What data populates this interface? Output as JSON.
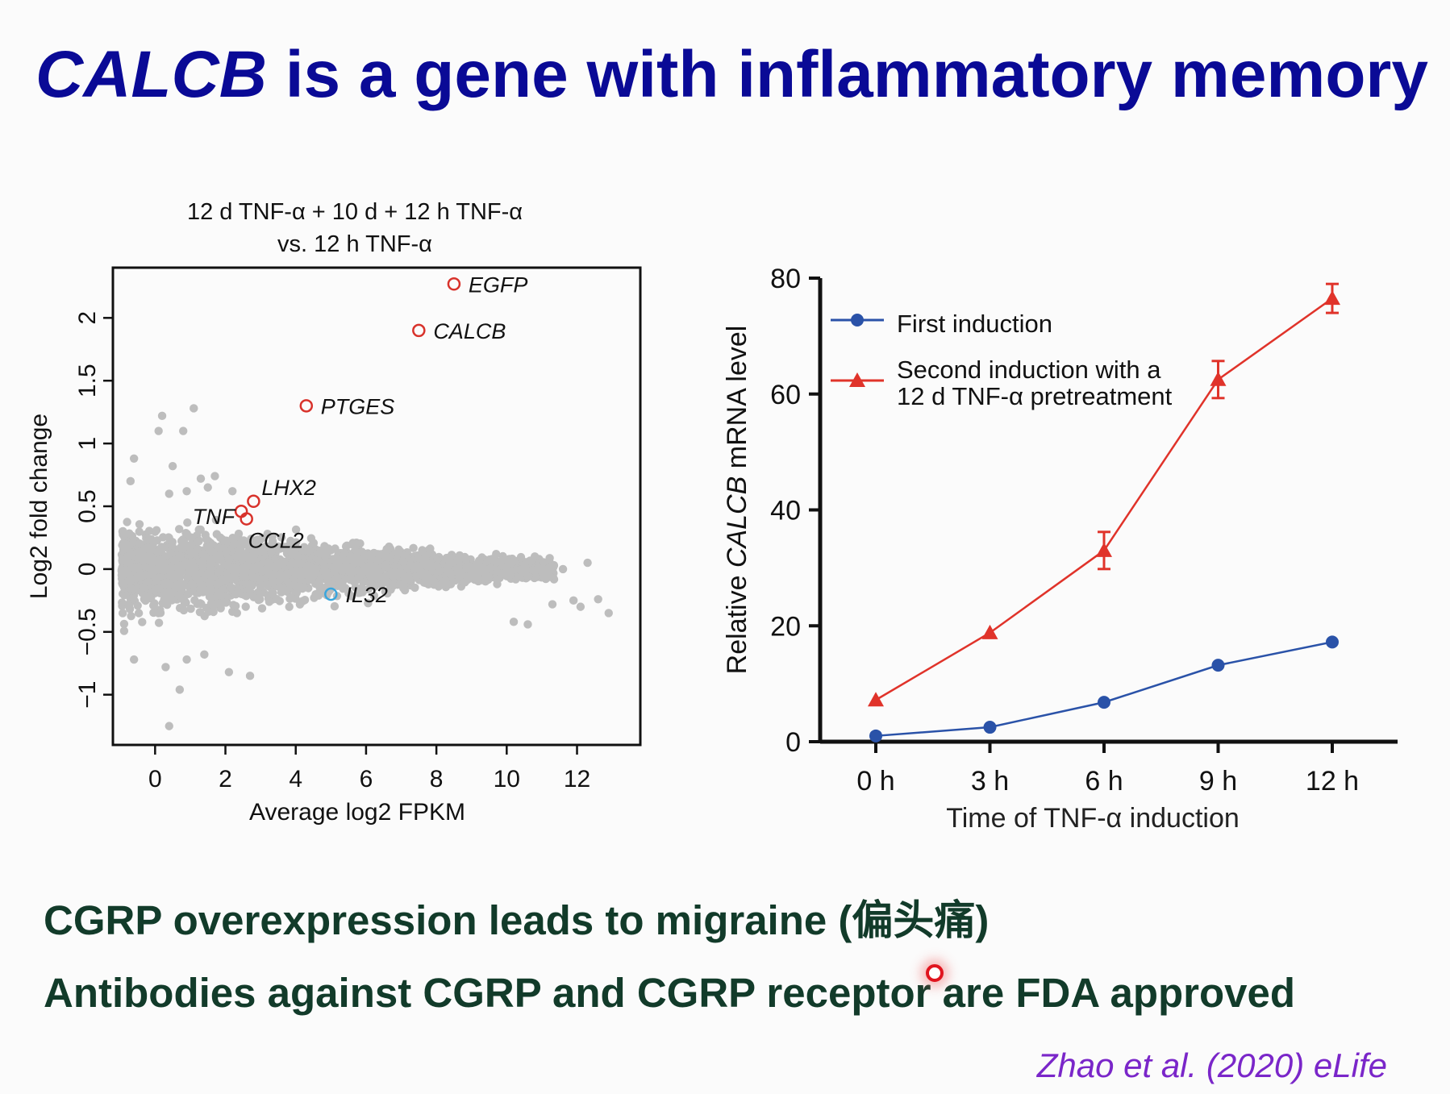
{
  "slide": {
    "title_gene": "CALCB",
    "title_rest": " is a gene with inflammatory memory",
    "bullet1": "CGRP overexpression leads to migraine (偏头痛)",
    "bullet2": "Antibodies against CGRP and CGRP receptor are FDA approved",
    "citation": "Zhao et al. (2020) eLife",
    "title_color": "#0a0a96",
    "bullet_color": "#123b2a",
    "citation_color": "#7a26c9"
  },
  "chart_data": [
    {
      "type": "scatter",
      "title_line1": "12 d TNF-α + 10 d + 12 h TNF-α",
      "title_line2": "vs. 12 h TNF-α",
      "xlabel": "Average log2 FPKM",
      "ylabel": "Log2 fold change",
      "xlim": [
        -1.2,
        13.8
      ],
      "ylim": [
        -1.4,
        2.4
      ],
      "xticks": [
        0,
        2,
        4,
        6,
        8,
        10,
        12
      ],
      "yticks": [
        -1,
        -0.5,
        0,
        0.5,
        1,
        1.5,
        2
      ],
      "ytick_labels": [
        "−1",
        "−0.5",
        "0",
        "0.5",
        "1",
        "1.5",
        "2"
      ],
      "background_points_color": "#bdbdbd",
      "highlighted": [
        {
          "label": "EGFP",
          "x": 8.5,
          "y": 2.27,
          "color": "#d8322b"
        },
        {
          "label": "CALCB",
          "x": 7.5,
          "y": 1.9,
          "color": "#d8322b"
        },
        {
          "label": "PTGES",
          "x": 4.3,
          "y": 1.3,
          "color": "#d8322b"
        },
        {
          "label": "LHX2",
          "x": 2.8,
          "y": 0.54,
          "color": "#d8322b"
        },
        {
          "label": "TNF",
          "x": 2.45,
          "y": 0.46,
          "color": "#d8322b"
        },
        {
          "label": "CCL2",
          "x": 2.6,
          "y": 0.4,
          "color": "#d8322b"
        },
        {
          "label": "IL32",
          "x": 5.0,
          "y": -0.2,
          "color": "#3aa6dd"
        }
      ]
    },
    {
      "type": "line",
      "xlabel": "Time of TNF-α induction",
      "ylabel_pre": "Relative ",
      "ylabel_gene": "CALCB",
      "ylabel_post": " mRNA level",
      "categories": [
        "0 h",
        "3 h",
        "6 h",
        "9 h",
        "12 h"
      ],
      "ylim": [
        0,
        80
      ],
      "yticks": [
        0,
        20,
        40,
        60,
        80
      ],
      "legend_position": "top-left",
      "series": [
        {
          "name": "First induction",
          "marker": "circle",
          "color": "#2a52a8",
          "values": [
            1,
            2.5,
            6.8,
            13.2,
            17.2
          ],
          "errors": [
            0,
            0,
            0,
            0,
            0
          ]
        },
        {
          "name_line1": "Second induction with a",
          "name_line2": "12 d TNF-α pretreatment",
          "marker": "triangle",
          "color": "#e0332a",
          "values": [
            7.2,
            18.8,
            33,
            62.5,
            76.5
          ],
          "errors": [
            0,
            0,
            3.2,
            3.2,
            2.5
          ]
        }
      ]
    }
  ]
}
